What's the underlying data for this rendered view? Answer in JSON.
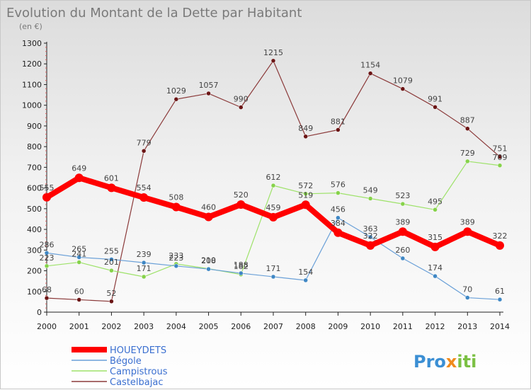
{
  "chart_data": {
    "type": "line",
    "title": "Evolution du Montant de la Dette par Habitant",
    "subtitle": "(en €)",
    "xlabel": "",
    "ylabel": "",
    "ylim": [
      0,
      1300
    ],
    "y_ticks": [
      0,
      100,
      200,
      300,
      400,
      500,
      600,
      700,
      800,
      900,
      1000,
      1100,
      1200,
      1300
    ],
    "x": [
      "2000",
      "2001",
      "2002",
      "2003",
      "2004",
      "2005",
      "2006",
      "2007",
      "2008",
      "2009",
      "2010",
      "2011",
      "2012",
      "2013",
      "2014"
    ],
    "grid": false,
    "legend_position": "bottom-left",
    "series": [
      {
        "name": "HOUEYDETS",
        "color": "#ff0000",
        "marker_color": "#ff0000",
        "values": [
          555,
          649,
          601,
          554,
          508,
          460,
          520,
          459,
          519,
          384,
          322,
          389,
          315,
          389,
          322
        ]
      },
      {
        "name": "Bégole",
        "color": "#6aa0d8",
        "marker_color": "#3f87c4",
        "values": [
          286,
          265,
          255,
          239,
          223,
          208,
          188,
          171,
          154,
          456,
          363,
          260,
          174,
          70,
          61
        ]
      },
      {
        "name": "Campistrous",
        "color": "#9ee26a",
        "marker_color": "#86d24a",
        "values": [
          223,
          241,
          201,
          171,
          233,
          210,
          182,
          612,
          572,
          576,
          549,
          523,
          495,
          729,
          709
        ]
      },
      {
        "name": "Castelbajac",
        "color": "#8b3a3a",
        "marker_color": "#6b1515",
        "values": [
          68,
          60,
          52,
          779,
          1029,
          1057,
          990,
          1215,
          849,
          881,
          1154,
          1079,
          991,
          887,
          751
        ]
      }
    ]
  },
  "logo": {
    "text": "Proxiti"
  }
}
